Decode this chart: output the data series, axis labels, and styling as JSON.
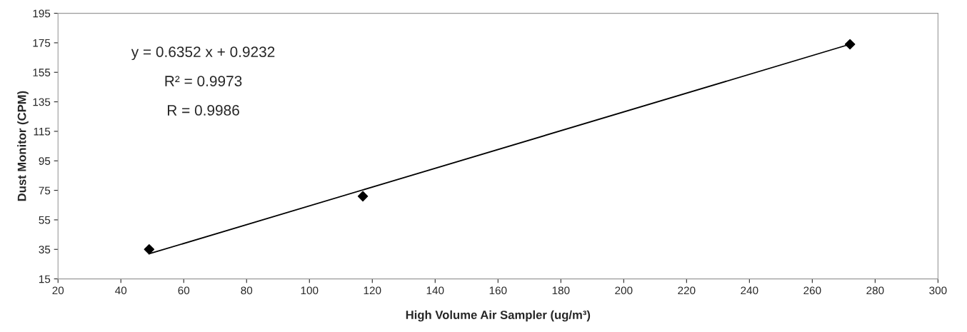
{
  "chart_data": {
    "type": "scatter",
    "xlabel": "High Volume Air Sampler (ug/m³)",
    "ylabel": "Dust Monitor (CPM)",
    "series": [
      {
        "color": "#000000",
        "marker": "diamond",
        "x": [
          49,
          117,
          272
        ],
        "values": [
          35,
          71,
          174
        ]
      },
      {
        "type": "line",
        "color": "#000000",
        "marker": "none",
        "line_style": "solid",
        "x": [
          49,
          272
        ],
        "values": [
          32,
          174
        ]
      }
    ],
    "annotations": [
      "y = 0.6352 x + 0.9232",
      "R² = 0.9973",
      "R = 0.9986"
    ],
    "xlim": [
      20,
      300
    ],
    "xticks": [
      20,
      40,
      60,
      80,
      100,
      120,
      140,
      160,
      180,
      200,
      220,
      240,
      260,
      280,
      300
    ],
    "ylim": [
      15,
      195
    ],
    "yticks": [
      15,
      35,
      55,
      75,
      95,
      115,
      135,
      155,
      175,
      195
    ],
    "grid": false,
    "legend": false
  }
}
